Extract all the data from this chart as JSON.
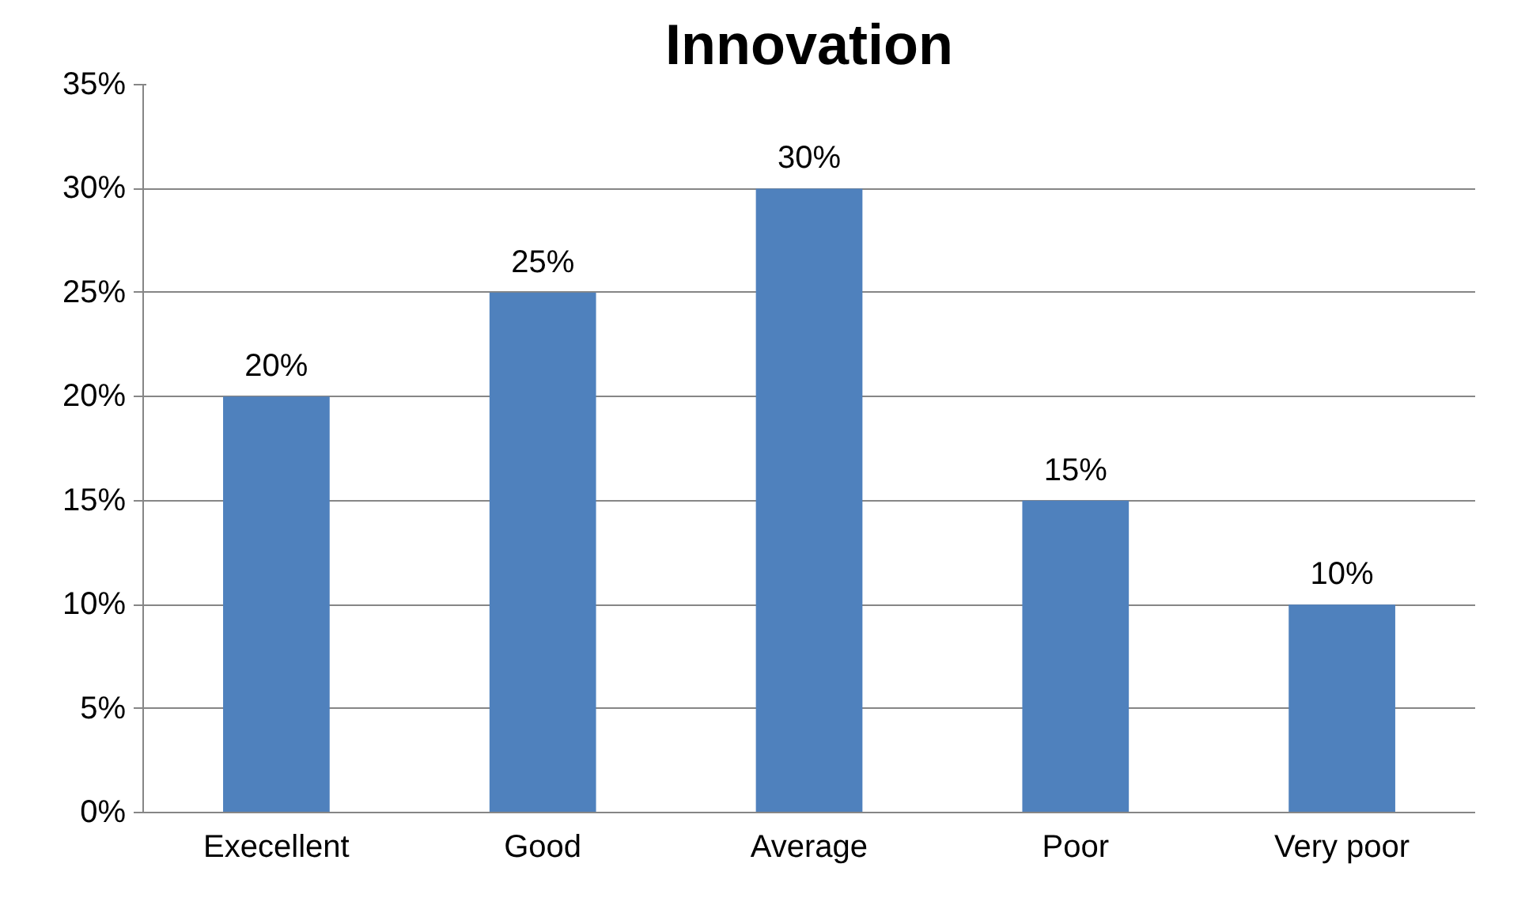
{
  "chart_data": {
    "type": "bar",
    "title": "Innovation",
    "categories": [
      "Execellent",
      "Good",
      "Average",
      "Poor",
      "Very poor"
    ],
    "values": [
      20,
      25,
      30,
      15,
      10
    ],
    "value_labels": [
      "20%",
      "25%",
      "30%",
      "15%",
      "10%"
    ],
    "color": "#4f81bd",
    "ylim": [
      0,
      35
    ],
    "yticks": [
      {
        "value": 0,
        "label": "0%"
      },
      {
        "value": 5,
        "label": "5%"
      },
      {
        "value": 10,
        "label": "10%"
      },
      {
        "value": 15,
        "label": "15%"
      },
      {
        "value": 20,
        "label": "20%"
      },
      {
        "value": 25,
        "label": "25%"
      },
      {
        "value": 30,
        "label": "30%"
      },
      {
        "value": 35,
        "label": "35%"
      }
    ],
    "grid": "y"
  }
}
